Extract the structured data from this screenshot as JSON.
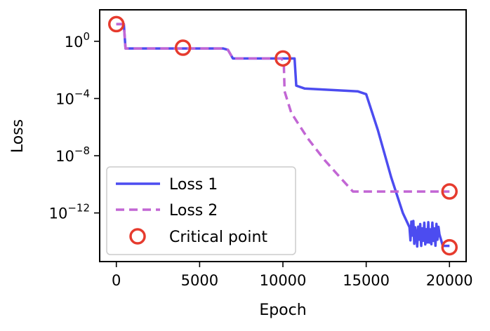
{
  "chart_data": {
    "type": "line",
    "xlabel": "Epoch",
    "ylabel": "Loss",
    "xlim": [
      -1000,
      21000
    ],
    "ylim_log10": [
      -15.4,
      2.2
    ],
    "y_scale": "log",
    "grid": false,
    "legend_placement": "lower-left",
    "x_ticks": [
      0,
      5000,
      10000,
      15000,
      20000
    ],
    "x_tick_labels": [
      "0",
      "5000",
      "10000",
      "15000",
      "20000"
    ],
    "y_ticks_log10": [
      0,
      -4,
      -8,
      -12
    ],
    "y_tick_labels": [
      {
        "base": "10",
        "exp": "0"
      },
      {
        "base": "10",
        "exp": "−4"
      },
      {
        "base": "10",
        "exp": "−8"
      },
      {
        "base": "10",
        "exp": "−12"
      }
    ],
    "series": [
      {
        "name": "Loss 1",
        "color": "#4c4cf0",
        "style": "solid",
        "log10_points": [
          [
            0,
            1.2
          ],
          [
            450,
            1.2
          ],
          [
            550,
            -0.5
          ],
          [
            6400,
            -0.5
          ],
          [
            6700,
            -0.6
          ],
          [
            7000,
            -1.2
          ],
          [
            9900,
            -1.2
          ],
          [
            10700,
            -1.2
          ],
          [
            10800,
            -3.1
          ],
          [
            11300,
            -3.3
          ],
          [
            14500,
            -3.5
          ],
          [
            15000,
            -3.7
          ],
          [
            15700,
            -6.2
          ],
          [
            16500,
            -9.5
          ],
          [
            17200,
            -12.0
          ],
          [
            17600,
            -13.0
          ],
          [
            18000,
            -13.5
          ],
          [
            19400,
            -13.5
          ],
          [
            19600,
            -14.3
          ],
          [
            20000,
            -14.3
          ]
        ],
        "noise_region": [
          17500,
          19400
        ]
      },
      {
        "name": "Loss 2",
        "color": "#c266d4",
        "style": "dashed",
        "log10_points": [
          [
            0,
            1.2
          ],
          [
            450,
            1.2
          ],
          [
            550,
            -0.5
          ],
          [
            6400,
            -0.5
          ],
          [
            6700,
            -0.6
          ],
          [
            7000,
            -1.2
          ],
          [
            9900,
            -1.2
          ],
          [
            10050,
            -1.4
          ],
          [
            10100,
            -3.5
          ],
          [
            10500,
            -5.0
          ],
          [
            11500,
            -6.8
          ],
          [
            12500,
            -8.3
          ],
          [
            13500,
            -9.6
          ],
          [
            14200,
            -10.5
          ],
          [
            14500,
            -10.5
          ],
          [
            20000,
            -10.5
          ]
        ]
      }
    ],
    "critical_points": {
      "name": "Critical point",
      "color": "#e63b2e",
      "log10_points": [
        [
          0,
          1.2
        ],
        [
          4000,
          -0.45
        ],
        [
          10000,
          -1.2
        ],
        [
          20000,
          -10.5
        ],
        [
          20000,
          -14.4
        ]
      ]
    }
  }
}
